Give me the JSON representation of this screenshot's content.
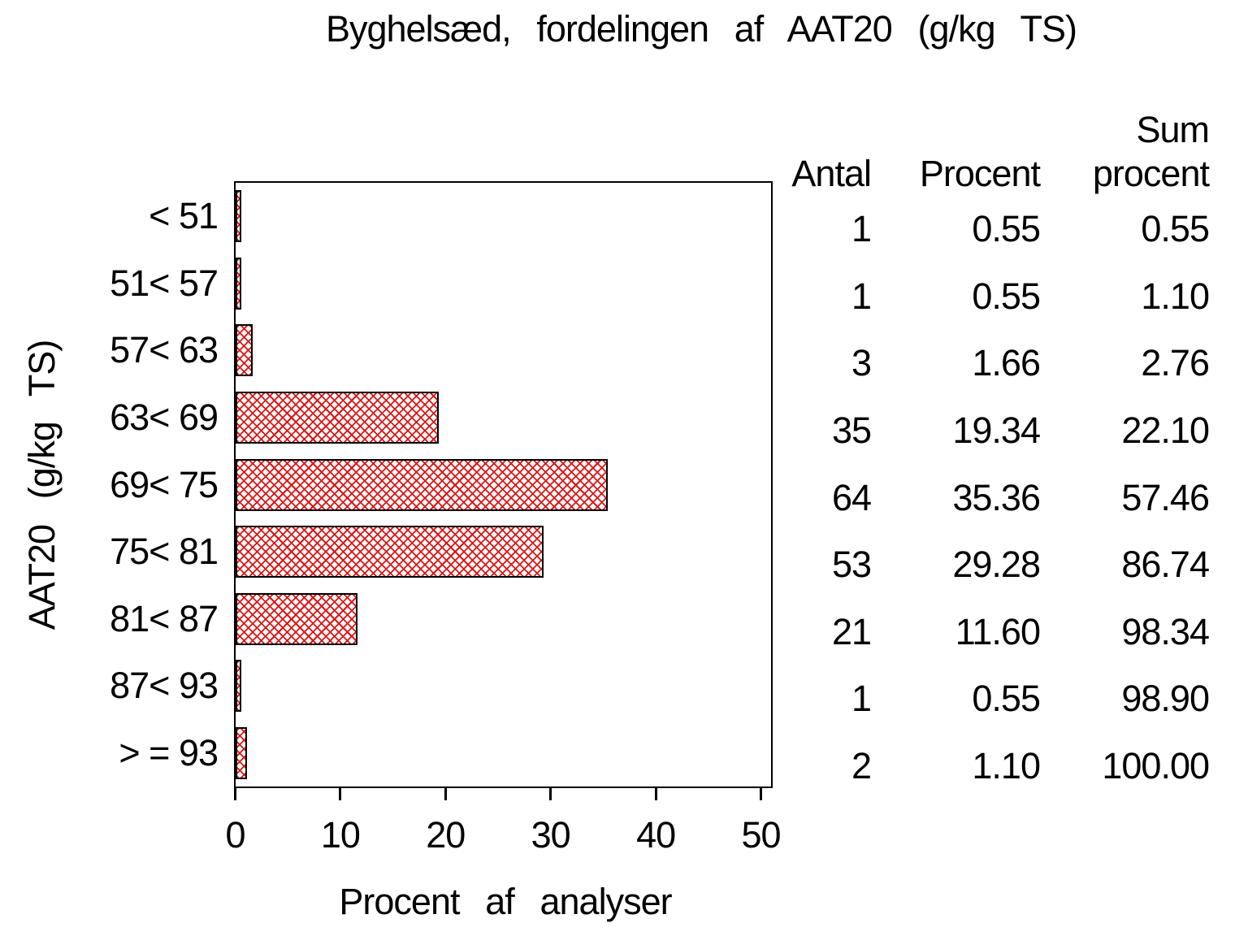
{
  "title": "Byghelsæd, fordelingen af AAT20 (g/kg TS)",
  "chart_data": {
    "type": "bar",
    "orientation": "horizontal",
    "title": "Byghelsæd, fordelingen af AAT20 (g/kg TS)",
    "xlabel": "Procent af analyser",
    "ylabel": "AAT20 (g/kg TS)",
    "xlim": [
      0,
      50
    ],
    "x_ticks": [
      "0",
      "10",
      "20",
      "30",
      "40",
      "50"
    ],
    "grid": "off",
    "bar_hatch_color": "#dd1414",
    "bar_border_color": "#000000",
    "categories": [
      "< 51",
      "51< 57",
      "57< 63",
      "63< 69",
      "69< 75",
      "75< 81",
      "81< 87",
      "87< 93",
      "> = 93"
    ],
    "values": [
      0.55,
      0.55,
      1.66,
      19.34,
      35.36,
      29.28,
      11.6,
      0.55,
      1.1
    ]
  },
  "table": {
    "headers": {
      "sum_top": "Sum",
      "antal": "Antal",
      "procent": "Procent",
      "sum_bottom": "procent"
    },
    "rows": [
      [
        "1",
        "0.55",
        "0.55"
      ],
      [
        "1",
        "0.55",
        "1.10"
      ],
      [
        "3",
        "1.66",
        "2.76"
      ],
      [
        "35",
        "19.34",
        "22.10"
      ],
      [
        "64",
        "35.36",
        "57.46"
      ],
      [
        "53",
        "29.28",
        "86.74"
      ],
      [
        "21",
        "11.60",
        "98.34"
      ],
      [
        "1",
        "0.55",
        "98.90"
      ],
      [
        "2",
        "1.10",
        "100.00"
      ]
    ]
  }
}
